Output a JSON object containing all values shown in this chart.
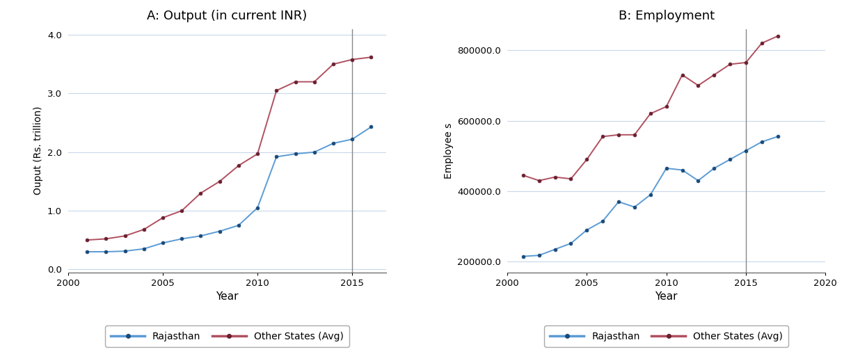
{
  "panel_A": {
    "title": "A: Output (in current INR)",
    "xlabel": "Year",
    "ylabel": "Ouput (Rs. trillion)",
    "xlim": [
      2000,
      2016.8
    ],
    "ylim": [
      -0.05,
      4.1
    ],
    "yticks": [
      0.0,
      1.0,
      2.0,
      3.0,
      4.0
    ],
    "xticks": [
      2000,
      2005,
      2010,
      2015
    ],
    "vline": 2015,
    "rajasthan": {
      "years": [
        2001,
        2002,
        2003,
        2004,
        2005,
        2006,
        2007,
        2008,
        2009,
        2010,
        2011,
        2012,
        2013,
        2014,
        2015,
        2016
      ],
      "values": [
        0.3,
        0.3,
        0.31,
        0.35,
        0.45,
        0.52,
        0.57,
        0.65,
        0.75,
        1.05,
        1.92,
        1.97,
        2.0,
        2.15,
        2.22,
        2.43
      ]
    },
    "other_states": {
      "years": [
        2001,
        2002,
        2003,
        2004,
        2005,
        2006,
        2007,
        2008,
        2009,
        2010,
        2011,
        2012,
        2013,
        2014,
        2015,
        2016
      ],
      "values": [
        0.5,
        0.52,
        0.57,
        0.68,
        0.88,
        1.0,
        1.3,
        1.5,
        1.77,
        1.97,
        3.05,
        3.2,
        3.2,
        3.5,
        3.58,
        3.62
      ]
    }
  },
  "panel_B": {
    "title": "B: Employment",
    "xlabel": "Year",
    "ylabel": "Employee s",
    "xlim": [
      2000,
      2020
    ],
    "ylim": [
      170000,
      860000
    ],
    "yticks": [
      200000,
      400000,
      600000,
      800000
    ],
    "ytick_labels": [
      "200000.0",
      "400000.0",
      "600000.0",
      "800000.0"
    ],
    "xticks": [
      2000,
      2005,
      2010,
      2015,
      2020
    ],
    "vline": 2015,
    "rajasthan": {
      "years": [
        2001,
        2002,
        2003,
        2004,
        2005,
        2006,
        2007,
        2008,
        2009,
        2010,
        2011,
        2012,
        2013,
        2014,
        2015,
        2016,
        2017
      ],
      "values": [
        215000,
        218000,
        235000,
        252000,
        290000,
        315000,
        370000,
        355000,
        390000,
        465000,
        460000,
        430000,
        465000,
        490000,
        515000,
        540000,
        555000
      ]
    },
    "other_states": {
      "years": [
        2001,
        2002,
        2003,
        2004,
        2005,
        2006,
        2007,
        2008,
        2009,
        2010,
        2011,
        2012,
        2013,
        2014,
        2015,
        2016,
        2017
      ],
      "values": [
        445000,
        430000,
        440000,
        435000,
        490000,
        555000,
        560000,
        560000,
        620000,
        640000,
        730000,
        700000,
        730000,
        760000,
        765000,
        820000,
        840000
      ]
    }
  },
  "rajasthan_color": "#5b9bd5",
  "other_states_color": "#b05060",
  "marker_color_raj": "#1a4a7a",
  "marker_color_other": "#6a2030",
  "vline_color": "#888888",
  "grid_color": "#c8d8ea",
  "bg_color": "#ffffff",
  "legend_labels": [
    "Rajasthan",
    "Other States (Avg)"
  ],
  "line_width": 1.4,
  "marker_size": 3.5
}
